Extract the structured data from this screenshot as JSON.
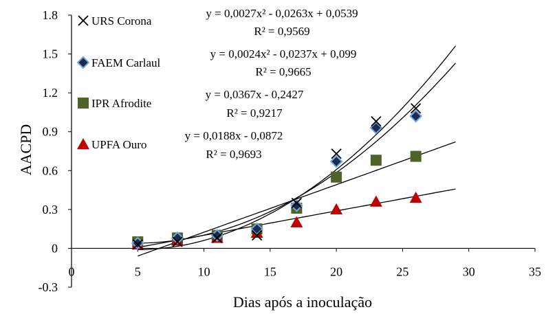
{
  "chart_data": {
    "type": "scatter",
    "xlabel": "Dias após a inoculação",
    "ylabel": "AACPD",
    "xlim": [
      0,
      35
    ],
    "ylim": [
      -0.3,
      1.8
    ],
    "xticks": [
      "0",
      "5",
      "10",
      "15",
      "20",
      "25",
      "30",
      "35"
    ],
    "yticks": [
      "-0.3",
      "0",
      "0.3",
      "0.6",
      "0.9",
      "1.2",
      "1.5",
      "1.8"
    ],
    "grid": false,
    "legend_position": "top-left",
    "series": [
      {
        "name": "URS Corona",
        "marker": "x",
        "color": "#000000",
        "x": [
          5,
          8,
          11,
          14,
          17,
          20,
          23,
          26
        ],
        "y": [
          0.03,
          0.05,
          0.08,
          0.1,
          0.35,
          0.73,
          0.98,
          1.08
        ],
        "trendline": {
          "kind": "poly2",
          "coef": [
            0.0027,
            -0.0263,
            0.0539
          ],
          "x_range": [
            5,
            29
          ]
        },
        "equation": "y = 0,0027x² - 0,0263x + 0,0539",
        "r2": "R² = 0,9569"
      },
      {
        "name": "FAEM Carlaul",
        "marker": "diamond",
        "color": "#1f2a4e",
        "edge": "#6fa8dc",
        "x": [
          5,
          8,
          11,
          14,
          17,
          20,
          23,
          26
        ],
        "y": [
          0.04,
          0.08,
          0.1,
          0.15,
          0.33,
          0.67,
          0.93,
          1.02
        ],
        "trendline": {
          "kind": "poly2",
          "coef": [
            0.0024,
            -0.0237,
            0.099
          ],
          "x_range": [
            5,
            29
          ]
        },
        "equation": "y = 0,0024x² - 0,0237x + 0,099",
        "r2": "R² = 0,9665"
      },
      {
        "name": "IPR Afrodite",
        "marker": "square",
        "color": "#4f6228",
        "x": [
          5,
          8,
          11,
          14,
          17,
          20,
          23,
          26
        ],
        "y": [
          0.05,
          0.08,
          0.1,
          0.15,
          0.31,
          0.55,
          0.68,
          0.71
        ],
        "trendline": {
          "kind": "linear",
          "coef": [
            0.0367,
            -0.2427
          ],
          "x_range": [
            5,
            29
          ]
        },
        "equation": "y = 0,0367x - 0,2427",
        "r2": "R² = 0,9217"
      },
      {
        "name": "UPFA Ouro",
        "marker": "triangle",
        "color": "#c00000",
        "x": [
          5,
          8,
          11,
          14,
          17,
          20,
          23,
          26
        ],
        "y": [
          0.03,
          0.06,
          0.08,
          0.12,
          0.2,
          0.3,
          0.36,
          0.39
        ],
        "trendline": {
          "kind": "linear",
          "coef": [
            0.0188,
            -0.0872
          ],
          "x_range": [
            5,
            29
          ]
        },
        "equation": "y = 0,0188x - 0,0872",
        "r2": "R² = 0,9693"
      }
    ]
  }
}
